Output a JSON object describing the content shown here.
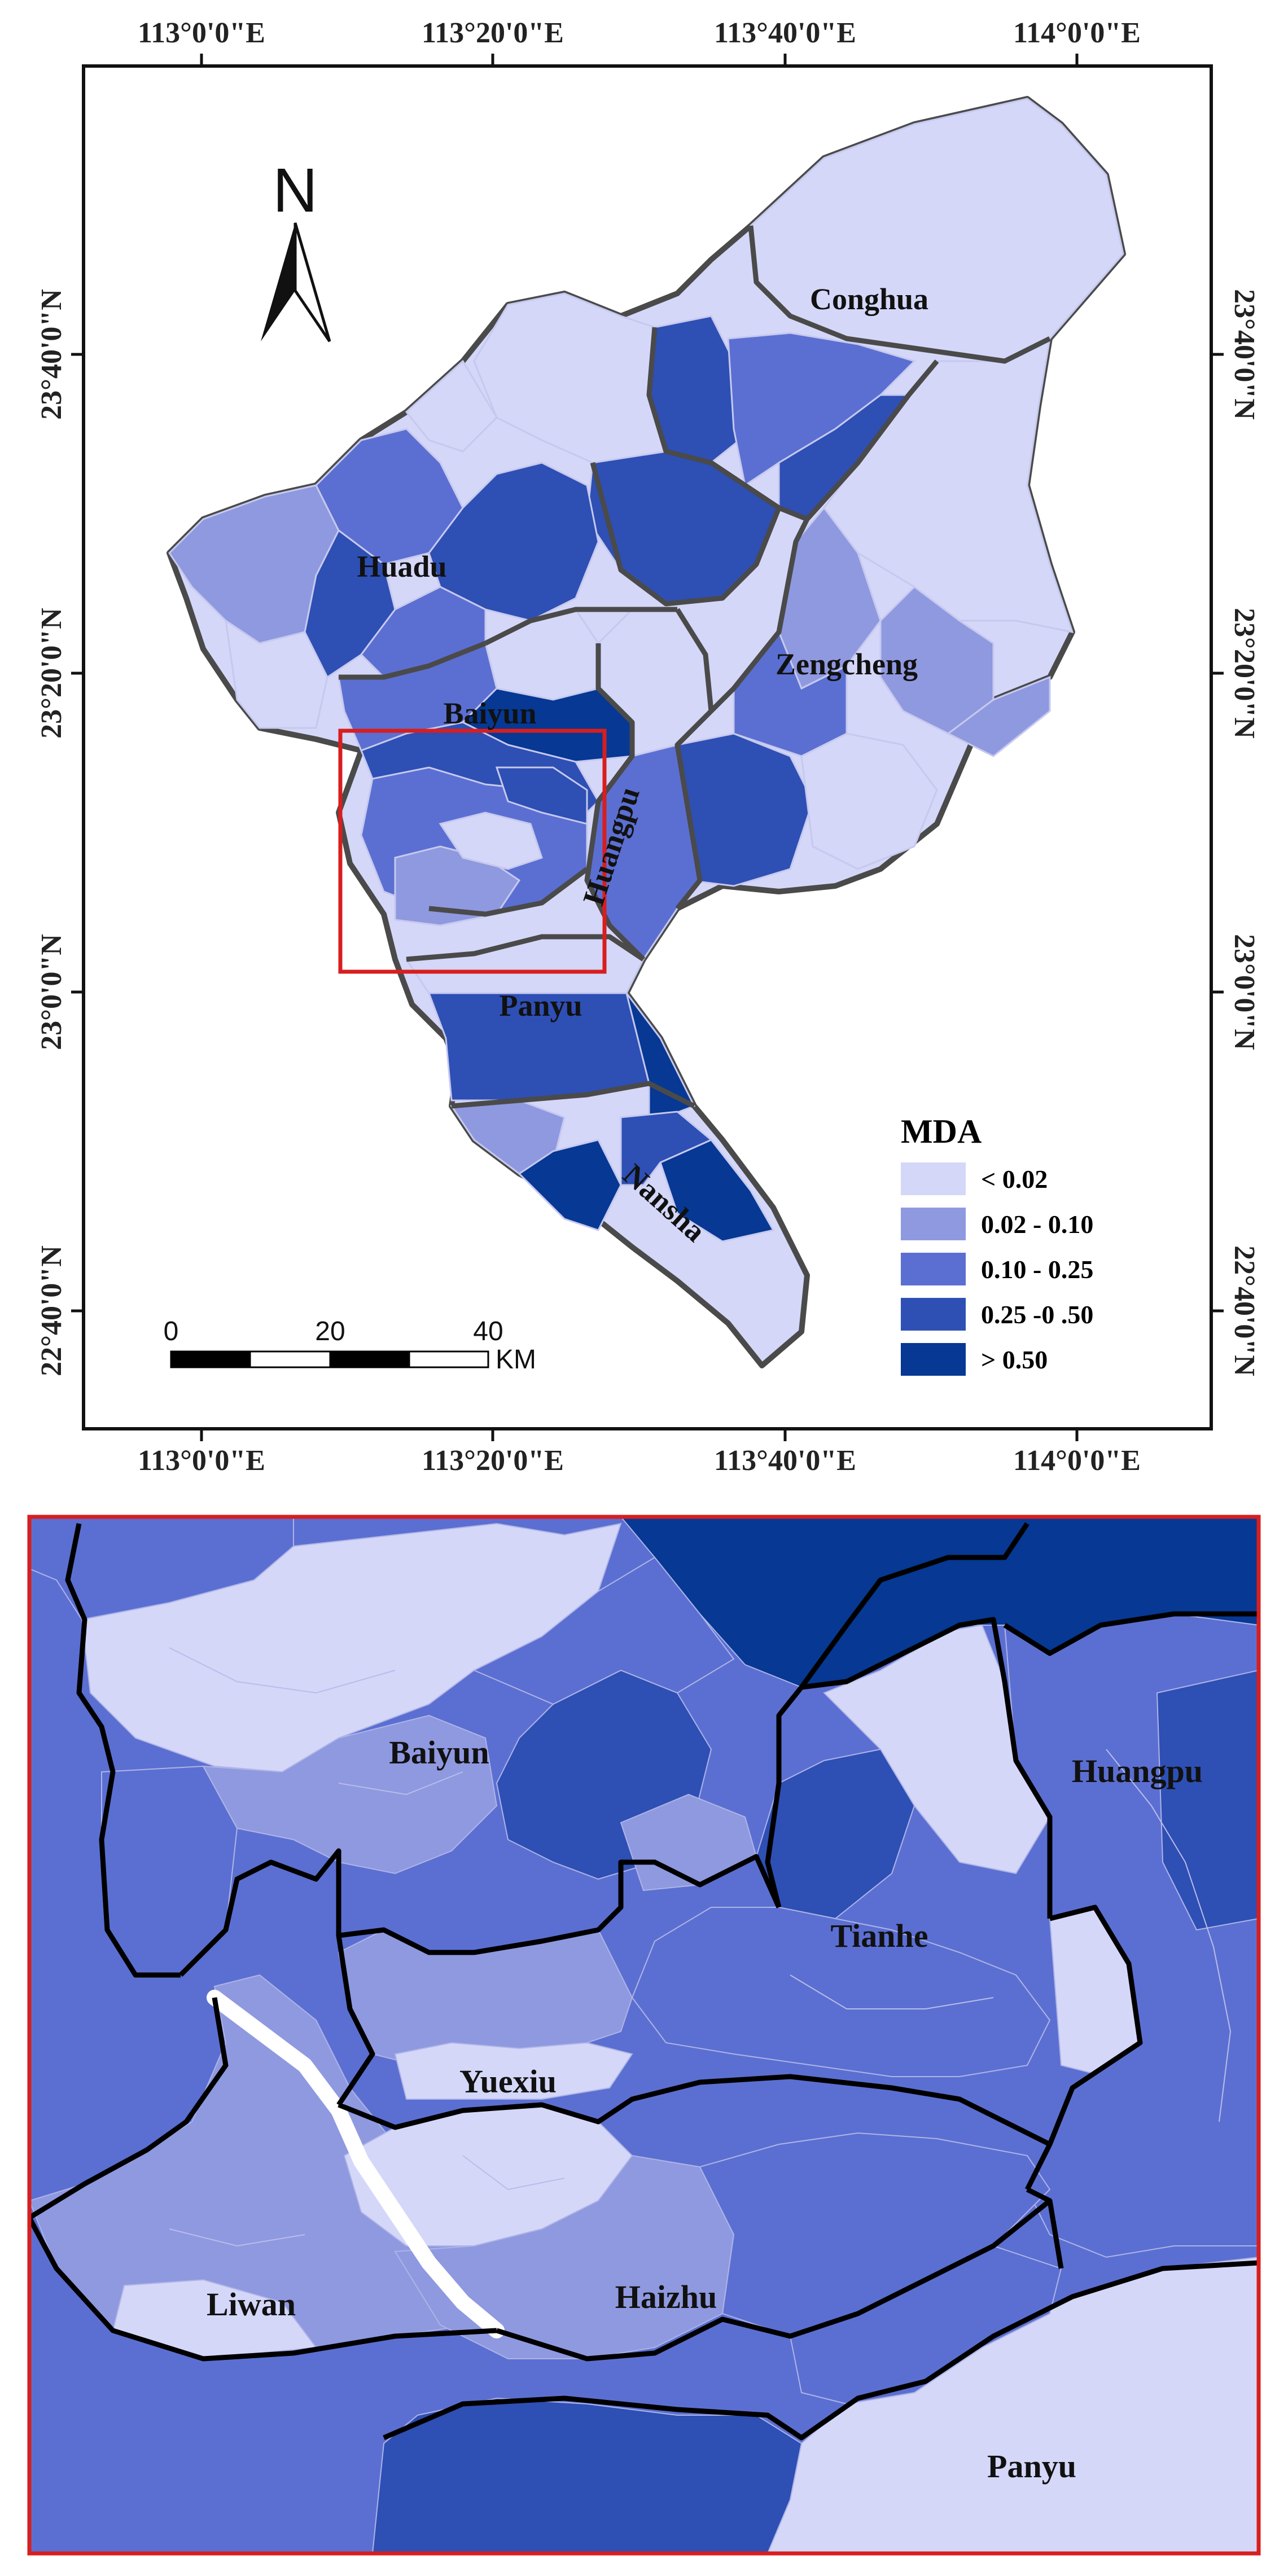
{
  "colors": {
    "class1": "#d4d7f8",
    "class2": "#8f99e0",
    "class3": "#5b6fd2",
    "class4": "#2e4fb4",
    "class5": "#063894",
    "boundary": "#4a4a4a",
    "inset_border": "#d81e1e"
  },
  "overview": {
    "lon_ticks_top": [
      "113°0'0\"E",
      "113°20'0\"E",
      "113°40'0\"E",
      "114°0'0\"E"
    ],
    "lon_ticks_bottom": [
      "113°0'0\"E",
      "113°20'0\"E",
      "113°40'0\"E",
      "114°0'0\"E"
    ],
    "lat_ticks_left": [
      "23°40'0\"N",
      "23°20'0\"N",
      "23°0'0\"N",
      "22°40'0\"N"
    ],
    "lat_ticks_right": [
      "23°40'0\"N",
      "23°20'0\"N",
      "23°0'0\"N",
      "22°40'0\"N"
    ],
    "north_label": "N",
    "districts": {
      "conghua": "Conghua",
      "huadu": "Huadu",
      "zengcheng": "Zengcheng",
      "baiyun": "Baiyun",
      "huangpu": "Huangpu",
      "panyu": "Panyu",
      "nansha": "Nansha"
    },
    "legend": {
      "title": "MDA",
      "items": [
        "< 0.02",
        "0.02 - 0.10",
        "0.10 - 0.25",
        "0.25 -0 .50",
        "> 0.50"
      ]
    },
    "scalebar": {
      "labels": [
        "0",
        "20",
        "40"
      ],
      "unit": "KM"
    }
  },
  "inset": {
    "districts": {
      "baiyun": "Baiyun",
      "huangpu": "Huangpu",
      "tianhe": "Tianhe",
      "yuexiu": "Yuexiu",
      "liwan": "Liwan",
      "haizhu": "Haizhu",
      "panyu": "Panyu"
    }
  }
}
